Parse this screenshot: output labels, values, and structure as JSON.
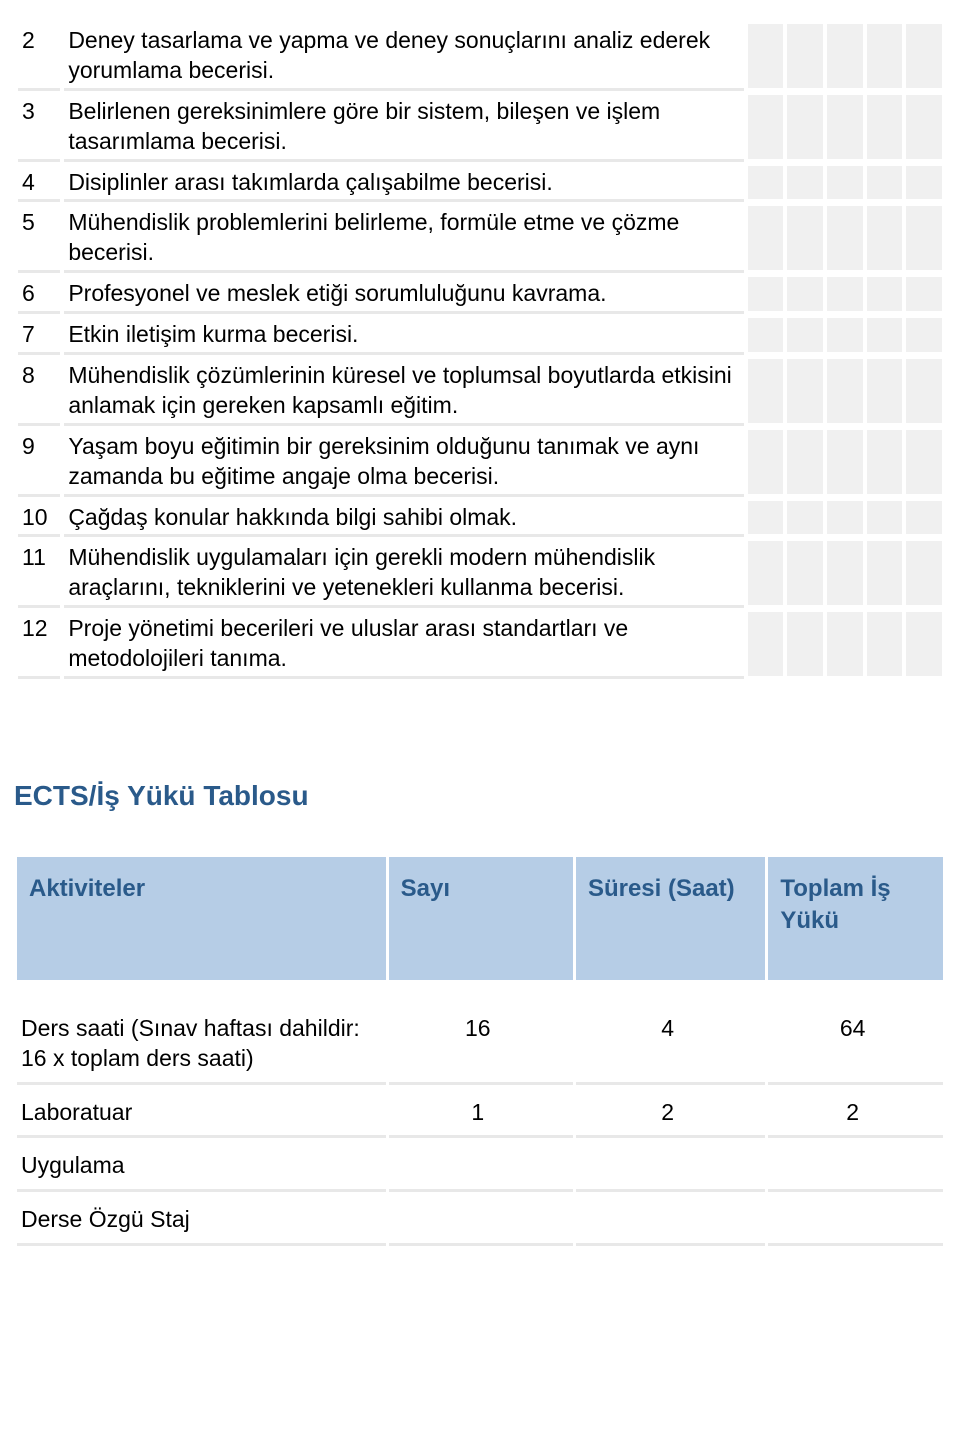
{
  "outcomes": [
    {
      "n": "2",
      "t": "Deney tasarlama ve yapma ve deney sonuçlarını analiz ederek yorumlama becerisi."
    },
    {
      "n": "3",
      "t": "Belirlenen gereksinimlere göre bir sistem, bileşen ve işlem tasarımlama becerisi."
    },
    {
      "n": "4",
      "t": "Disiplinler arası takımlarda çalışabilme becerisi."
    },
    {
      "n": "5",
      "t": "Mühendislik problemlerini belirleme, formüle etme ve çözme becerisi."
    },
    {
      "n": "6",
      "t": "Profesyonel ve meslek etiği sorumluluğunu kavrama."
    },
    {
      "n": "7",
      "t": "Etkin iletişim kurma becerisi."
    },
    {
      "n": "8",
      "t": "Mühendislik çözümlerinin küresel ve toplumsal boyutlarda etkisini anlamak için gereken kapsamlı eğitim."
    },
    {
      "n": "9",
      "t": "Yaşam boyu eğitimin bir gereksinim olduğunu tanımak ve aynı zamanda bu eğitime angaje olma becerisi."
    },
    {
      "n": "10",
      "t": "Çağdaş konular hakkında bilgi sahibi olmak."
    },
    {
      "n": "11",
      "t": "Mühendislik uygulamaları için gerekli modern mühendislik araçlarını, tekniklerini ve yetenekleri kullanma becerisi."
    },
    {
      "n": "12",
      "t": "Proje yönetimi becerileri ve uluslar arası standartları ve metodolojileri tanıma."
    }
  ],
  "ects": {
    "heading": "ECTS/İş Yükü Tablosu",
    "columns": {
      "activity": "Aktiviteler",
      "count": "Sayı",
      "duration": "Süresi (Saat)",
      "total": "Toplam İş Yükü"
    },
    "rows": [
      {
        "a": "Ders saati (Sınav haftası dahildir: 16 x toplam ders saati)",
        "c": "16",
        "d": "4",
        "t": "64"
      },
      {
        "a": "Laboratuar",
        "c": "1",
        "d": "2",
        "t": "2"
      },
      {
        "a": "Uygulama",
        "c": "",
        "d": "",
        "t": ""
      },
      {
        "a": "Derse Özgü Staj",
        "c": "",
        "d": "",
        "t": ""
      }
    ]
  },
  "colors": {
    "heading": "#2a5a8a",
    "header_bg": "#b6cde6",
    "row_rule": "#e8e8e8",
    "check_bg": "#f0f0f0"
  }
}
